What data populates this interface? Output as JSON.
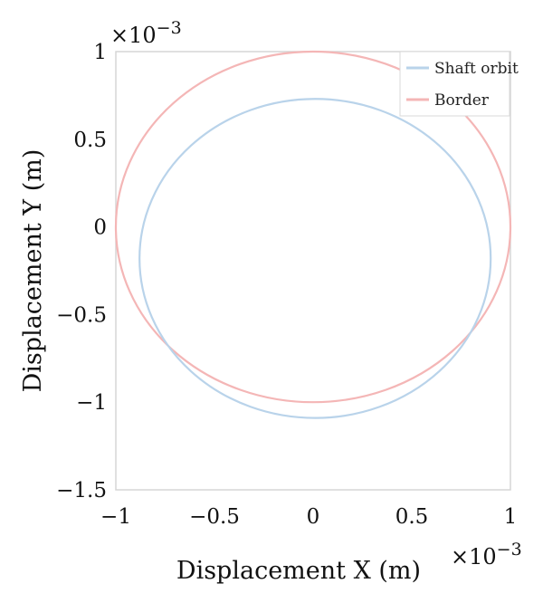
{
  "chart_data": {
    "type": "line",
    "xlabel": "Displacement X (m)",
    "ylabel": "Displacement Y (m)",
    "x_multiplier": "×10",
    "x_multiplier_exp": "−3",
    "y_multiplier": "×10",
    "y_multiplier_exp": "−3",
    "xlim": [
      -1,
      1
    ],
    "ylim": [
      -1.5,
      1
    ],
    "xticks": [
      -1,
      -0.5,
      0,
      0.5,
      1
    ],
    "xtick_labels": [
      "−1",
      "−0.5",
      "0",
      "0.5",
      "1"
    ],
    "yticks": [
      -1.5,
      -1,
      -0.5,
      0,
      0.5,
      1
    ],
    "ytick_labels": [
      "−1.5",
      "−1",
      "−0.5",
      "0",
      "0.5",
      "1"
    ],
    "grid": false,
    "legend": "top-right",
    "series": [
      {
        "name": "Shaft orbit",
        "color": "#b9d3ea",
        "shape": "ellipse",
        "center": [
          0.01,
          -0.18
        ],
        "radius_x": 0.89,
        "radius_y": 0.91
      },
      {
        "name": "Border",
        "color": "#f4b6b6",
        "shape": "circle",
        "center": [
          0,
          0
        ],
        "radius_x": 1.0,
        "radius_y": 1.0
      }
    ]
  }
}
